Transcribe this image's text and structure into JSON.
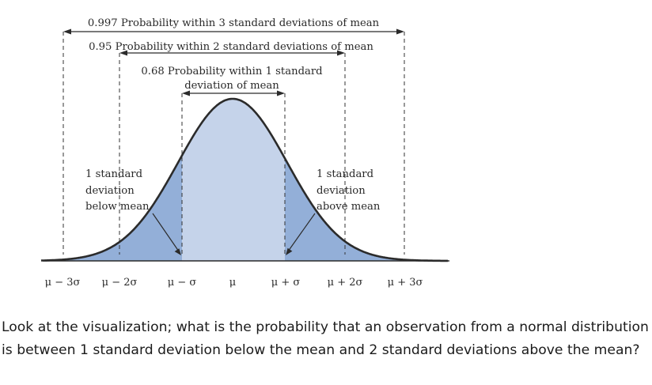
{
  "figure": {
    "labels": {
      "range3": "0.997 Probability within 3 standard deviations of mean",
      "range2": "0.95 Probability within 2 standard deviations of mean",
      "range1_line1": "0.68 Probability within 1 standard",
      "range1_line2": "deviation of mean",
      "below_line1": "1 standard",
      "below_line2": "deviation",
      "below_line3": "below mean",
      "above_line1": "1 standard",
      "above_line2": "deviation",
      "above_line3": "above mean"
    },
    "axis_ticks": [
      "μ − 3σ",
      "μ − 2σ",
      "μ − σ",
      "μ",
      "μ + σ",
      "μ + 2σ",
      "μ + 3σ"
    ],
    "colors": {
      "inner_fill": "#c5d3ea",
      "outer_fill": "#93afd8",
      "curve": "#2b2b2b",
      "dashed": "#333333"
    }
  },
  "question": "Look at the visualization; what is the probability that an observation from a normal distribution is between 1 standard deviation below the mean and 2 standard deviations above the mean?"
}
